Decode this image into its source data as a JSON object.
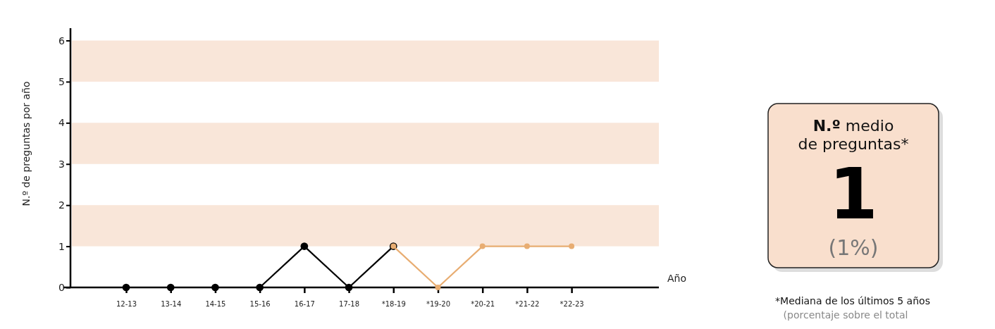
{
  "chart_data": {
    "type": "line",
    "categories": [
      "12-13",
      "13-14",
      "14-15",
      "15-16",
      "16-17",
      "17-18",
      "*18-19",
      "*19-20",
      "*20-21",
      "*21-22",
      "*22-23"
    ],
    "series": [
      {
        "color": "#000000",
        "values": [
          0,
          0,
          0,
          0,
          1,
          0,
          1,
          null,
          null,
          null,
          null
        ]
      },
      {
        "color": "#e8ad72",
        "values": [
          null,
          null,
          null,
          null,
          null,
          null,
          1,
          0,
          1,
          1,
          1
        ]
      }
    ],
    "ylabel": "N.º de preguntas por año",
    "ylim": [
      0,
      6.3
    ],
    "yticks": [
      0,
      1,
      2,
      3,
      4,
      5,
      6
    ],
    "marker": "circle",
    "line_style": "solid",
    "grid": false,
    "bands": [
      {
        "axis": "y",
        "from": 1,
        "to": 2,
        "color": "#f9e6d9"
      },
      {
        "axis": "y",
        "from": 3,
        "to": 4,
        "color": "#f9e6d9"
      },
      {
        "axis": "y",
        "from": 5,
        "to": 6,
        "color": "#f9e6d9"
      }
    ],
    "annotations": [
      "N.º medio",
      "de preguntas*",
      "1",
      "(1%)",
      "*Mediana de los últimos 5 años",
      "(porcentaje sobre el total",
      "Año"
    ]
  }
}
